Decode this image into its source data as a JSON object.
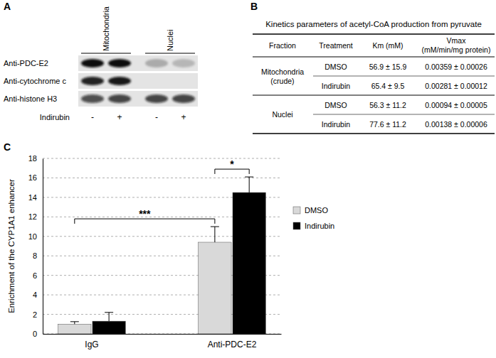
{
  "panel_labels": [
    "A",
    "B",
    "C"
  ],
  "panel_a": {
    "fractions": [
      "Mitochondria",
      "Nuclei"
    ],
    "antibodies": [
      "Anti-PDC-E2",
      "Anti-cytochrome c",
      "Anti-histone H3"
    ],
    "treatment": "Indirubin",
    "lanes": [
      "-",
      "+",
      "-",
      "+"
    ],
    "band_intensity": [
      [
        1.0,
        1.0,
        0.25,
        0.2
      ],
      [
        0.9,
        0.95,
        0.0,
        0.0
      ],
      [
        0.7,
        0.75,
        0.75,
        0.75
      ]
    ]
  },
  "panel_b": {
    "title": "Kinetics parameters of acetyl-CoA production from pyruvate",
    "header": [
      [
        "Fraction"
      ],
      [
        "Treatment"
      ],
      [
        "Km (mM)"
      ],
      [
        "Vmax",
        "(mM/min/mg protein)"
      ]
    ],
    "rows": [
      {
        "fraction": [
          "Mitochondria",
          "(crude)"
        ],
        "entries": [
          [
            "DMSO",
            "56.9 ± 15.9",
            "0.00359 ± 0.00026"
          ],
          [
            "Indirubin",
            "65.4 ± 9.5",
            "0.00281 ± 0.00012"
          ]
        ]
      },
      {
        "fraction": [
          "Nuclei"
        ],
        "entries": [
          [
            "DMSO",
            "56.3 ± 11.2",
            "0.00094 ± 0.00005"
          ],
          [
            "Indirubin",
            "77.6 ± 11.2",
            "0.00138 ± 0.00006"
          ]
        ]
      }
    ]
  },
  "chart_data": {
    "type": "bar",
    "y_label": "Enrichment of the CYP1A1 enhancer",
    "categories": [
      "IgG",
      "Anti-PDC-E2"
    ],
    "series": [
      {
        "name": "DMSO",
        "color": "#d9d9d9",
        "values": [
          1.0,
          9.4
        ],
        "errors": [
          0.25,
          1.6
        ]
      },
      {
        "name": "Indirubin",
        "color": "#000000",
        "values": [
          1.3,
          14.5
        ],
        "errors": [
          0.9,
          1.6
        ]
      }
    ],
    "ylim": [
      0,
      18
    ],
    "yticks": [
      0,
      2,
      4,
      6,
      8,
      10,
      12,
      14,
      16,
      18
    ],
    "grid": true,
    "legend": "right",
    "annotations": [
      {
        "text": "***",
        "categories": [
          "IgG",
          "Anti-PDC-E2"
        ],
        "series": [
          "DMSO",
          "DMSO"
        ]
      },
      {
        "text": "*",
        "categories": [
          "Anti-PDC-E2",
          "Anti-PDC-E2"
        ],
        "series": [
          "DMSO",
          "Indirubin"
        ]
      }
    ]
  }
}
